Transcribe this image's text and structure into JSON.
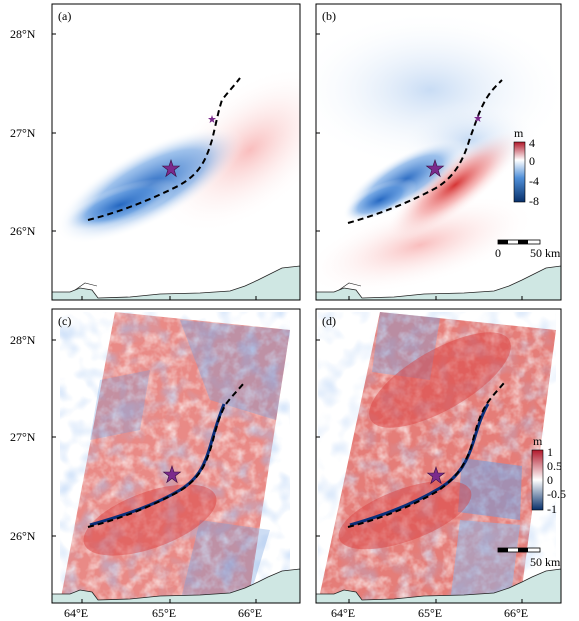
{
  "panels": {
    "a": {
      "label": "(a)"
    },
    "b": {
      "label": "(b)"
    },
    "c": {
      "label": "(c)"
    },
    "d": {
      "label": "(d)"
    }
  },
  "axes": {
    "lat_labels": [
      "28°N",
      "27°N",
      "26°N"
    ],
    "lon_labels": [
      "64°E",
      "65°E",
      "66°E"
    ]
  },
  "colorbar_model": {
    "unit": "m",
    "ticks": [
      "4",
      "0",
      "-4",
      "-8"
    ],
    "colors": {
      "top": "#b2182b",
      "mid": "#ffffff",
      "bottom": "#08306b"
    }
  },
  "colorbar_insar": {
    "unit": "m",
    "ticks": [
      "1",
      "0.5",
      "0",
      "-0.5",
      "-1"
    ],
    "colors": {
      "top": "#b2182b",
      "mid": "#ffffff",
      "bottom": "#08306b"
    }
  },
  "scalebar_b": {
    "zero": "0",
    "distance": "50 km"
  },
  "scalebar_d": {
    "distance": "50 km"
  },
  "symbols": {
    "epicenter": "star-icon",
    "fault_trace": "dashed-line",
    "star_color": "#7b2a8c",
    "land_color": "#cfe7e3"
  }
}
